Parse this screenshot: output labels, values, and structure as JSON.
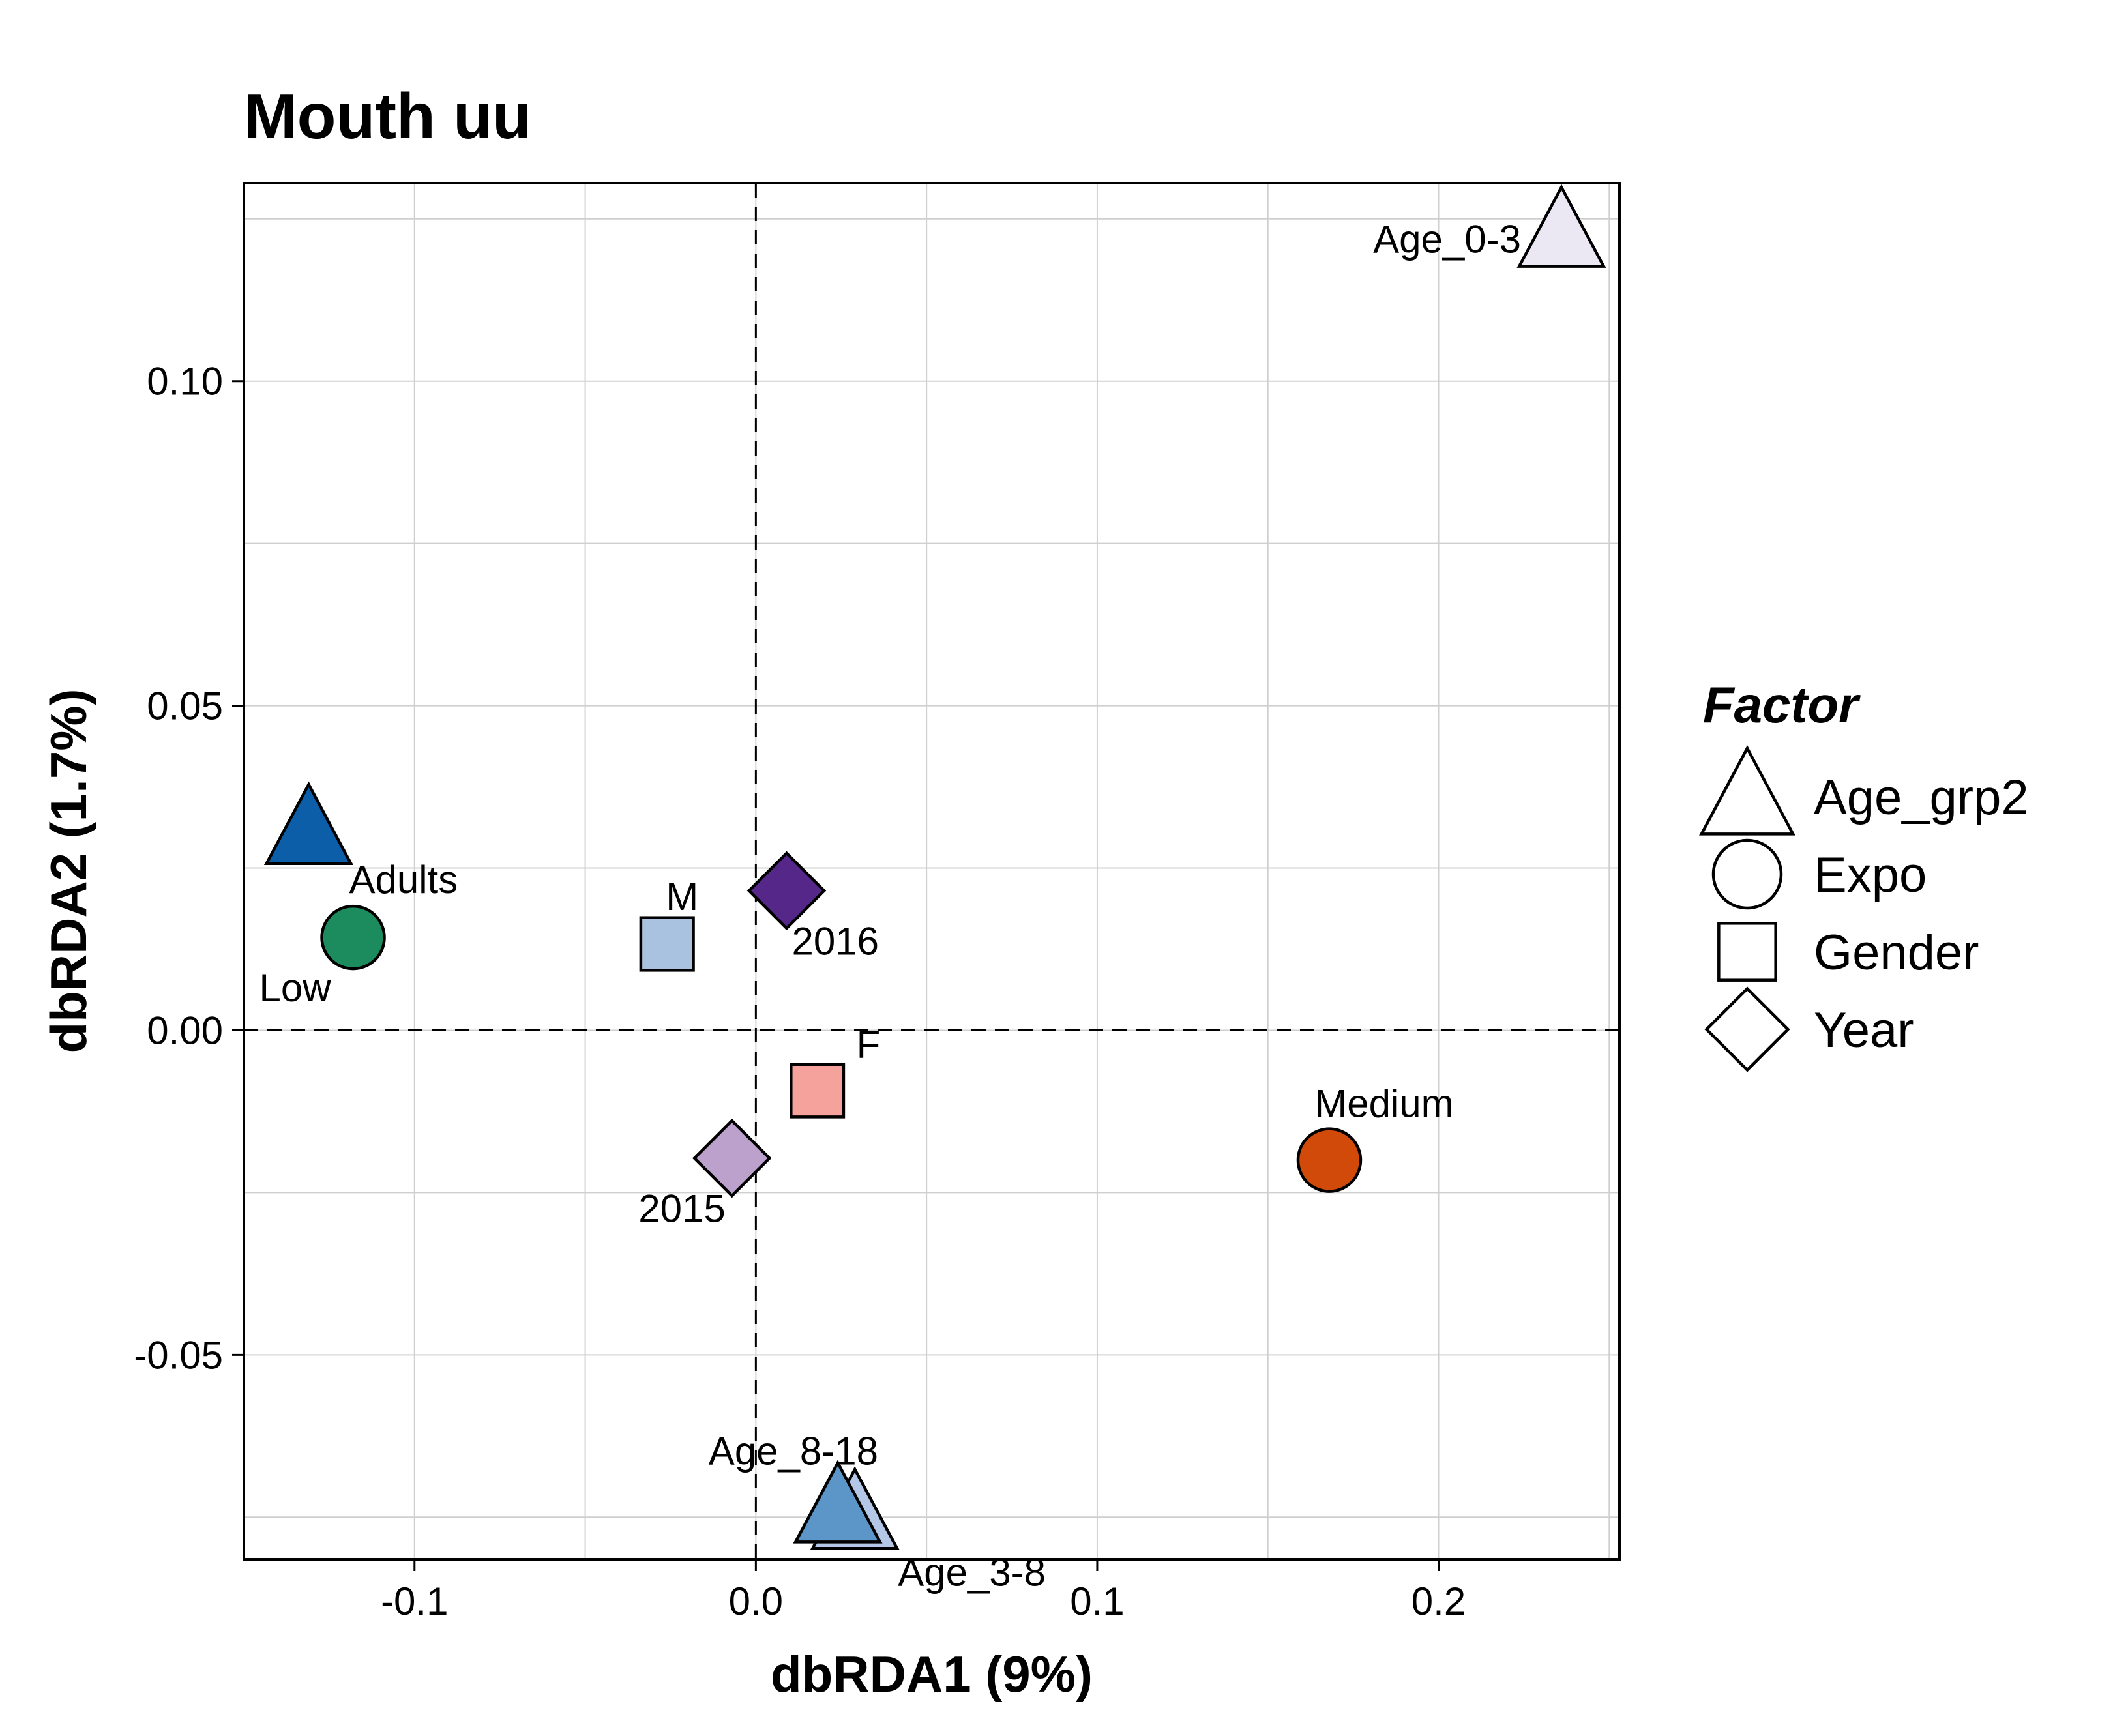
{
  "chart_data": {
    "type": "scatter",
    "title": "Mouth uu",
    "xlabel": "dbRDA1 (9%)",
    "ylabel": "dbRDA2 (1.7%)",
    "xlim": [
      -0.15,
      0.253
    ],
    "ylim": [
      -0.0815,
      0.1305
    ],
    "x_ticks": [
      -0.1,
      0.0,
      0.1,
      0.2
    ],
    "x_tick_labels": [
      "-0.1",
      "0.0",
      "0.1",
      "0.2"
    ],
    "y_ticks": [
      -0.05,
      0.0,
      0.05,
      0.1
    ],
    "y_tick_labels": [
      "-0.05",
      "0.00",
      "0.05",
      "0.10"
    ],
    "grid": true,
    "reference_lines": {
      "x": 0,
      "y": 0,
      "style": "dashed"
    },
    "legend": {
      "title": "Factor",
      "position": "right",
      "entries": [
        {
          "label": "Age_grp2",
          "shape": "triangle"
        },
        {
          "label": "Expo",
          "shape": "circle"
        },
        {
          "label": "Gender",
          "shape": "square"
        },
        {
          "label": "Year",
          "shape": "diamond"
        }
      ]
    },
    "points": [
      {
        "label": "Age_0-3",
        "factor": "Age_grp2",
        "shape": "triangle",
        "x": 0.236,
        "y": 0.123,
        "color": "#ebe8f4",
        "label_pos": "left"
      },
      {
        "label": "Adults",
        "factor": "Age_grp2",
        "shape": "triangle",
        "x": -0.131,
        "y": 0.031,
        "color": "#0c5ea8",
        "label_pos": "below-right"
      },
      {
        "label": "Age_3-8",
        "factor": "Age_grp2",
        "shape": "triangle",
        "x": 0.029,
        "y": -0.0745,
        "color": "#b4c7e7",
        "label_pos": "below-right"
      },
      {
        "label": "Age_8-18",
        "factor": "Age_grp2",
        "shape": "triangle",
        "x": 0.024,
        "y": -0.0735,
        "color": "#5c96c8",
        "label_pos": "above-left"
      },
      {
        "label": "Low",
        "factor": "Expo",
        "shape": "circle",
        "x": -0.118,
        "y": 0.0143,
        "color": "#1c8c5f",
        "label_pos": "below-left"
      },
      {
        "label": "Medium",
        "factor": "Expo",
        "shape": "circle",
        "x": 0.168,
        "y": -0.02,
        "color": "#d14a0a",
        "label_pos": "above"
      },
      {
        "label": "M",
        "factor": "Gender",
        "shape": "square",
        "x": -0.026,
        "y": 0.0133,
        "color": "#a8c2df",
        "label_pos": "right"
      },
      {
        "label": "F",
        "factor": "Gender",
        "shape": "square",
        "x": 0.018,
        "y": -0.0093,
        "color": "#f5a29d",
        "label_pos": "above-right"
      },
      {
        "label": "2016",
        "factor": "Year",
        "shape": "diamond",
        "x": 0.009,
        "y": 0.0215,
        "color": "#542788",
        "label_pos": "below-right"
      },
      {
        "label": "2015",
        "factor": "Year",
        "shape": "diamond",
        "x": -0.007,
        "y": -0.0197,
        "color": "#bca1cd",
        "label_pos": "below-left"
      }
    ]
  }
}
